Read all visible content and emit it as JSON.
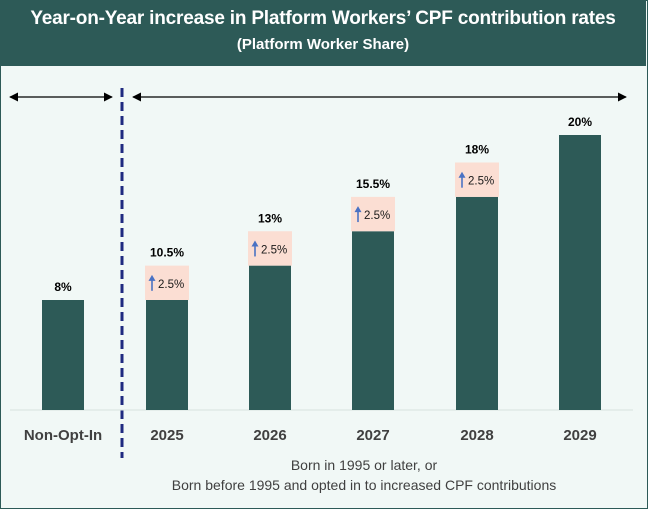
{
  "header": {
    "title": "Year-on-Year increase in Platform Workers’ CPF contribution rates",
    "subtitle": "(Platform Worker Share)"
  },
  "footnote": {
    "line1": "Born in 1995 or later, or",
    "line2": "Born before 1995 and opted in to increased CPF contributions"
  },
  "colors": {
    "bar": "#2d5a57",
    "increment_box": "#fbded3",
    "arrow": "#4a72c4",
    "divider": "#1f2a80",
    "header_bg": "#2d5a57",
    "plot_bg": "#f1f8f6"
  },
  "chart_data": {
    "type": "bar",
    "title": "Year-on-Year increase in Platform Workers’ CPF contribution rates",
    "subtitle": "(Platform Worker Share)",
    "categories": [
      "Non-Opt-In",
      "2025",
      "2026",
      "2027",
      "2028",
      "2029"
    ],
    "values": [
      8,
      10.5,
      13,
      15.5,
      18,
      20
    ],
    "value_labels": [
      "8%",
      "10.5%",
      "13%",
      "15.5%",
      "18%",
      "20%"
    ],
    "increments": [
      null,
      "2.5%",
      "2.5%",
      "2.5%",
      "2.5%",
      null
    ],
    "increment_value": 2.5,
    "ylim": [
      0,
      20
    ],
    "xlabel": "",
    "ylabel": "",
    "grid": false,
    "legend": "none"
  }
}
